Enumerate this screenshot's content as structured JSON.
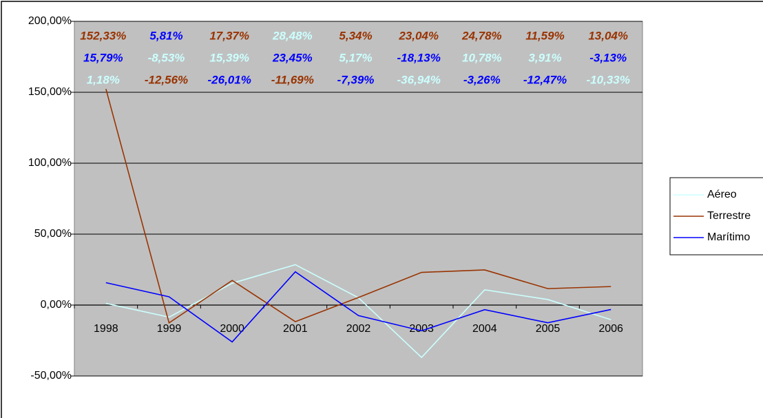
{
  "chart_data": {
    "type": "line",
    "categories": [
      "1998",
      "1999",
      "2000",
      "2001",
      "2002",
      "2003",
      "2004",
      "2005",
      "2006"
    ],
    "series": [
      {
        "name": "Aéreo",
        "color": "#ccffff",
        "values": [
          1.18,
          -8.53,
          15.39,
          28.48,
          5.17,
          -36.94,
          10.78,
          3.91,
          -10.33
        ],
        "value_labels": [
          "1,18%",
          "-8,53%",
          "15,39%",
          "28,48%",
          "5,17%",
          "-36,94%",
          "10,78%",
          "3,91%",
          "-10,33%"
        ]
      },
      {
        "name": "Terrestre",
        "color": "#993300",
        "values": [
          152.33,
          -12.56,
          17.37,
          -11.69,
          5.34,
          23.04,
          24.78,
          11.59,
          13.04
        ],
        "value_labels": [
          "152,33%",
          "-12,56%",
          "17,37%",
          "-11,69%",
          "5,34%",
          "23,04%",
          "24,78%",
          "11,59%",
          "13,04%"
        ]
      },
      {
        "name": "Marítimo",
        "color": "#0000ff",
        "values": [
          15.79,
          5.81,
          -26.01,
          23.45,
          -7.39,
          -18.13,
          -3.26,
          -12.47,
          -3.13
        ],
        "value_labels": [
          "15,79%",
          "5,81%",
          "-26,01%",
          "23,45%",
          "-7,39%",
          "-18,13%",
          "-3,26%",
          "-12,47%",
          "-3,13%"
        ]
      }
    ],
    "ylim": [
      -50,
      200
    ],
    "yticks": [
      {
        "value": -50,
        "label": "-50,00%"
      },
      {
        "value": 0,
        "label": "0,00%"
      },
      {
        "value": 50,
        "label": "50,00%"
      },
      {
        "value": 100,
        "label": "100,00%"
      },
      {
        "value": 150,
        "label": "150,00%"
      },
      {
        "value": 200,
        "label": "200,00%"
      }
    ],
    "grid": true,
    "legend": "right"
  }
}
